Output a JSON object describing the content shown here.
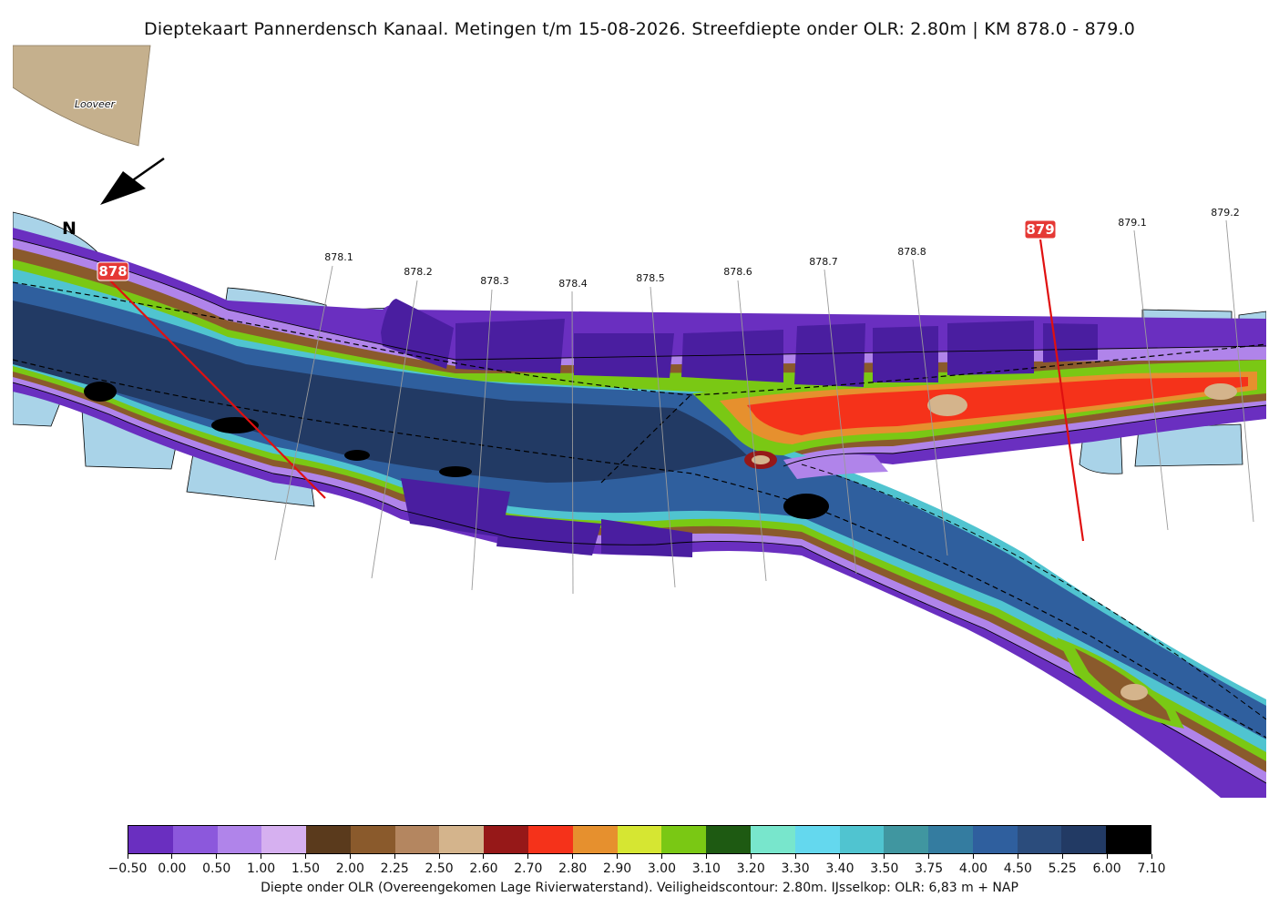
{
  "title": "Dieptekaart Pannerdensch Kanaal. Metingen t/m 15-08-2026. Streefdiepte onder OLR: 2.80m | KM 878.0 - 879.0",
  "north_label": "N",
  "place_label": "Looveer",
  "km_markers": [
    {
      "label": "878",
      "highlight": true
    },
    {
      "label": "878.1",
      "highlight": false
    },
    {
      "label": "878.2",
      "highlight": false
    },
    {
      "label": "878.3",
      "highlight": false
    },
    {
      "label": "878.4",
      "highlight": false
    },
    {
      "label": "878.5",
      "highlight": false
    },
    {
      "label": "878.6",
      "highlight": false
    },
    {
      "label": "878.7",
      "highlight": false
    },
    {
      "label": "878.8",
      "highlight": false
    },
    {
      "label": "879",
      "highlight": true
    },
    {
      "label": "879.1",
      "highlight": false
    },
    {
      "label": "879.2",
      "highlight": false
    }
  ],
  "colorbar": {
    "ticks": [
      "−0.50",
      "0.00",
      "0.50",
      "1.00",
      "1.50",
      "2.00",
      "2.25",
      "2.50",
      "2.60",
      "2.70",
      "2.80",
      "2.90",
      "3.00",
      "3.10",
      "3.20",
      "3.30",
      "3.40",
      "3.50",
      "3.75",
      "4.00",
      "4.50",
      "5.25",
      "6.00",
      "7.10"
    ],
    "colors": [
      "#6a2fc0",
      "#8c58dc",
      "#b084ea",
      "#d6b0f0",
      "#5a3a1c",
      "#8a5a2c",
      "#b48660",
      "#d4b48c",
      "#961818",
      "#f5321a",
      "#e6902e",
      "#d6e632",
      "#7ac814",
      "#1e5a12",
      "#78e6cc",
      "#64d8ee",
      "#50c4d0",
      "#4096a0",
      "#347ca0",
      "#2f5f9e",
      "#2b4c7c",
      "#223a64",
      "#000000"
    ],
    "label": "Diepte onder OLR (Overeengekomen Lage Rivierwaterstand). Veiligheidscontour: 2.80m. IJsselkop: OLR: 6,83 m + NAP"
  },
  "colors": {
    "land": "#c5b08d",
    "groyne_field_water": "#a9d3e8",
    "km_highlight": "#e53935",
    "km_line": "#e01010"
  }
}
